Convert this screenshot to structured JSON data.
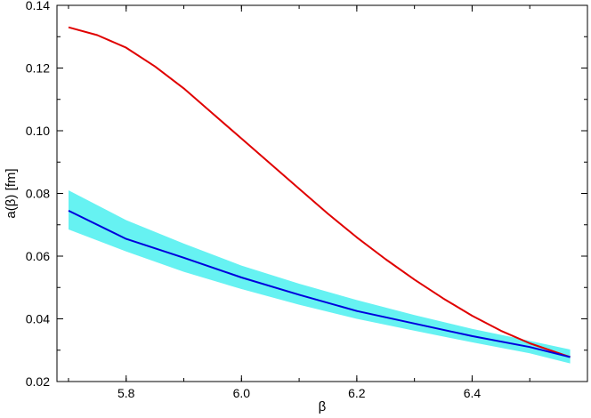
{
  "chart_data": {
    "type": "line",
    "xlabel": "β",
    "ylabel": "a(β) [fm]",
    "xlim": [
      5.68,
      6.6
    ],
    "ylim": [
      0.02,
      0.14
    ],
    "xticks": [
      5.8,
      6.0,
      6.2,
      6.4
    ],
    "xtick_labels": [
      "5.8",
      "6.0",
      "6.2",
      "6.4"
    ],
    "yticks": [
      0.02,
      0.04,
      0.06,
      0.08,
      0.1,
      0.12,
      0.14
    ],
    "ytick_labels": [
      "0.02",
      "0.04",
      "0.06",
      "0.08",
      "0.10",
      "0.12",
      "0.14"
    ],
    "grid": false,
    "series": [
      {
        "color": "#e00000",
        "x": [
          5.7,
          5.75,
          5.8,
          5.85,
          5.9,
          5.95,
          6.0,
          6.05,
          6.1,
          6.15,
          6.2,
          6.25,
          6.3,
          6.35,
          6.4,
          6.45,
          6.5,
          6.57
        ],
        "y": [
          0.133,
          0.1305,
          0.1265,
          0.1205,
          0.1135,
          0.1055,
          0.0975,
          0.0895,
          0.0815,
          0.0735,
          0.066,
          0.059,
          0.0525,
          0.0465,
          0.041,
          0.0362,
          0.0322,
          0.0278
        ]
      },
      {
        "color": "#0000dd",
        "x": [
          5.7,
          5.8,
          5.9,
          6.0,
          6.1,
          6.2,
          6.3,
          6.4,
          6.5,
          6.57
        ],
        "y": [
          0.0745,
          0.0655,
          0.0595,
          0.0532,
          0.0477,
          0.0425,
          0.0385,
          0.0345,
          0.031,
          0.0278
        ]
      }
    ],
    "band": {
      "color": "#66f2f2",
      "x": [
        5.7,
        5.8,
        5.9,
        6.0,
        6.1,
        6.2,
        6.3,
        6.4,
        6.5,
        6.57
      ],
      "lower": [
        0.0685,
        0.0615,
        0.055,
        0.0495,
        0.0445,
        0.04,
        0.0362,
        0.0325,
        0.029,
        0.0258
      ],
      "upper": [
        0.081,
        0.0715,
        0.064,
        0.057,
        0.0512,
        0.046,
        0.0412,
        0.0368,
        0.033,
        0.0302
      ]
    }
  }
}
